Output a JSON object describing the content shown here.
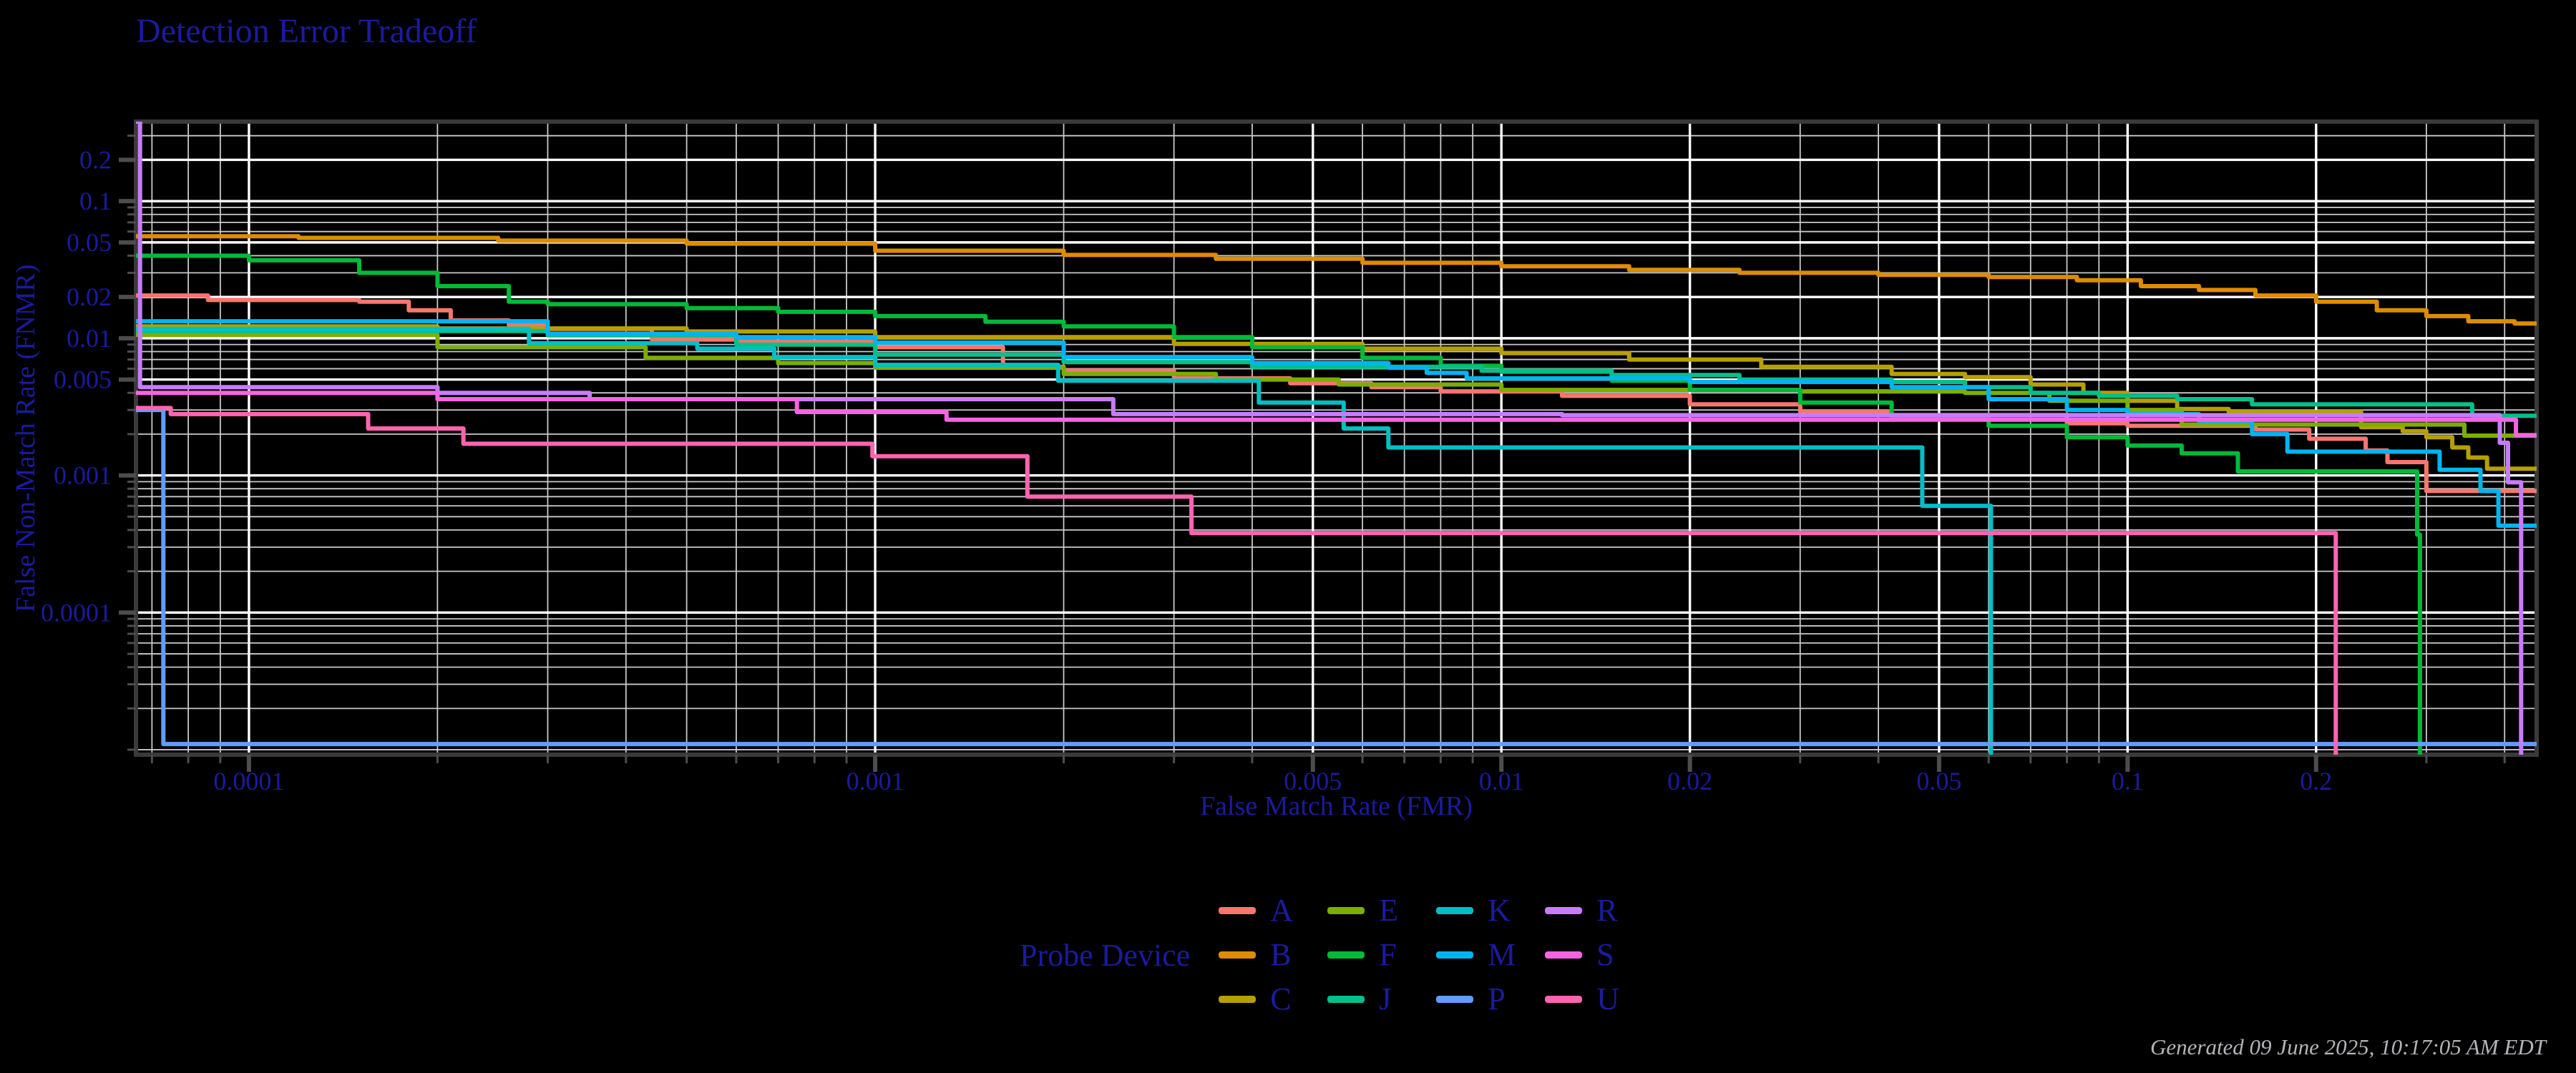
{
  "title": "Detection Error Tradeoff",
  "footer": "Generated 09 June 2025, 10:17:05 AM EDT",
  "axes": {
    "x_label": "False Match Rate (FMR)",
    "y_label": "False Non-Match Rate (FNMR)"
  },
  "legend": {
    "title": "Probe Device",
    "entries": [
      {
        "label": "A",
        "color": "#F8766D"
      },
      {
        "label": "B",
        "color": "#DE8C00"
      },
      {
        "label": "C",
        "color": "#B79F00"
      },
      {
        "label": "E",
        "color": "#7CAE00"
      },
      {
        "label": "F",
        "color": "#00BA38"
      },
      {
        "label": "J",
        "color": "#00C08B"
      },
      {
        "label": "K",
        "color": "#00BFC4"
      },
      {
        "label": "M",
        "color": "#00B4F0"
      },
      {
        "label": "P",
        "color": "#619CFF"
      },
      {
        "label": "R",
        "color": "#C77CFF"
      },
      {
        "label": "S",
        "color": "#F564E3"
      },
      {
        "label": "U",
        "color": "#FF64B0"
      }
    ]
  },
  "chart_data": {
    "type": "line",
    "subtype": "DET step curves, log-log axes",
    "title": "Detection Error Tradeoff",
    "xlabel": "False Match Rate (FMR)",
    "ylabel": "False Non-Match Rate (FNMR)",
    "grid": true,
    "legend_position": "bottom",
    "xlim": [
      6.6e-05,
      0.45
    ],
    "ylim": [
      9.2e-06,
      0.38
    ],
    "x_ticks": [
      {
        "label": "0.0001",
        "value": 0.0001
      },
      {
        "label": "0.001",
        "value": 0.001
      },
      {
        "label": "0.005",
        "value": 0.005
      },
      {
        "label": "0.01",
        "value": 0.01
      },
      {
        "label": "0.02",
        "value": 0.02
      },
      {
        "label": "0.05",
        "value": 0.05
      },
      {
        "label": "0.1",
        "value": 0.1
      },
      {
        "label": "0.2",
        "value": 0.2
      }
    ],
    "y_ticks": [
      {
        "label": "0.2",
        "value": 0.2
      },
      {
        "label": "0.1",
        "value": 0.1
      },
      {
        "label": "0.05",
        "value": 0.05
      },
      {
        "label": "0.02",
        "value": 0.02
      },
      {
        "label": "0.01",
        "value": 0.01
      },
      {
        "label": "0.005",
        "value": 0.005
      },
      {
        "label": "0.001",
        "value": 0.001
      },
      {
        "label": "0.0001",
        "value": 0.0001
      }
    ],
    "series": [
      {
        "name": "A",
        "color": "#F8766D",
        "points": [
          [
            6.6e-05,
            0.0205
          ],
          [
            8.6e-05,
            0.019
          ],
          [
            0.00015,
            0.0185
          ],
          [
            0.00018,
            0.016
          ],
          [
            0.00021,
            0.0135
          ],
          [
            0.00026,
            0.0125
          ],
          [
            0.0003,
            0.0117
          ],
          [
            0.00044,
            0.0098
          ],
          [
            0.0006,
            0.0094
          ],
          [
            0.001,
            0.0086
          ],
          [
            0.0016,
            0.0062
          ],
          [
            0.002,
            0.0058
          ],
          [
            0.003,
            0.0051
          ],
          [
            0.0046,
            0.0047
          ],
          [
            0.0062,
            0.0044
          ],
          [
            0.008,
            0.0041
          ],
          [
            0.0125,
            0.0038
          ],
          [
            0.02,
            0.0033
          ],
          [
            0.03,
            0.0029
          ],
          [
            0.042,
            0.00275
          ],
          [
            0.08,
            0.0024
          ],
          [
            0.1,
            0.0023
          ],
          [
            0.16,
            0.00216
          ],
          [
            0.195,
            0.00185
          ],
          [
            0.24,
            0.00152
          ],
          [
            0.26,
            0.00125
          ],
          [
            0.3,
            0.00077
          ],
          [
            0.45,
            0.00077
          ]
        ]
      },
      {
        "name": "B",
        "color": "#DE8C00",
        "points": [
          [
            6.6e-05,
            0.0555
          ],
          [
            0.00012,
            0.054
          ],
          [
            0.00025,
            0.0515
          ],
          [
            0.0005,
            0.049
          ],
          [
            0.001,
            0.0435
          ],
          [
            0.002,
            0.0405
          ],
          [
            0.0035,
            0.038
          ],
          [
            0.006,
            0.0355
          ],
          [
            0.01,
            0.0335
          ],
          [
            0.016,
            0.0315
          ],
          [
            0.024,
            0.03
          ],
          [
            0.04,
            0.029
          ],
          [
            0.06,
            0.028
          ],
          [
            0.083,
            0.0265
          ],
          [
            0.105,
            0.024
          ],
          [
            0.13,
            0.0225
          ],
          [
            0.16,
            0.0205
          ],
          [
            0.2,
            0.0185
          ],
          [
            0.25,
            0.016
          ],
          [
            0.3,
            0.0145
          ],
          [
            0.35,
            0.0133
          ],
          [
            0.415,
            0.0128
          ],
          [
            0.45,
            0.0128
          ]
        ]
      },
      {
        "name": "C",
        "color": "#B79F00",
        "points": [
          [
            6.6e-05,
            0.0122
          ],
          [
            0.0002,
            0.0118
          ],
          [
            0.0005,
            0.0112
          ],
          [
            0.001,
            0.0102
          ],
          [
            0.003,
            0.0091
          ],
          [
            0.006,
            0.0084
          ],
          [
            0.01,
            0.0078
          ],
          [
            0.016,
            0.007
          ],
          [
            0.026,
            0.0062
          ],
          [
            0.042,
            0.0055
          ],
          [
            0.055,
            0.0052
          ],
          [
            0.07,
            0.0046
          ],
          [
            0.085,
            0.004
          ],
          [
            0.1,
            0.0035
          ],
          [
            0.12,
            0.00305
          ],
          [
            0.145,
            0.0029
          ],
          [
            0.236,
            0.00225
          ],
          [
            0.275,
            0.0021
          ],
          [
            0.3,
            0.0019
          ],
          [
            0.33,
            0.0016
          ],
          [
            0.35,
            0.00135
          ],
          [
            0.375,
            0.00112
          ],
          [
            0.45,
            0.0011
          ]
        ]
      },
      {
        "name": "E",
        "color": "#7CAE00",
        "points": [
          [
            6.6e-05,
            0.0106
          ],
          [
            0.0002,
            0.0086
          ],
          [
            0.00043,
            0.0072
          ],
          [
            0.0007,
            0.0066
          ],
          [
            0.001,
            0.0061
          ],
          [
            0.002,
            0.0055
          ],
          [
            0.0035,
            0.005
          ],
          [
            0.0055,
            0.0046
          ],
          [
            0.01,
            0.0042
          ],
          [
            0.03,
            0.0041
          ],
          [
            0.055,
            0.004
          ],
          [
            0.075,
            0.0035
          ],
          [
            0.1,
            0.003
          ],
          [
            0.122,
            0.00235
          ],
          [
            0.345,
            0.00195
          ],
          [
            0.45,
            0.0019
          ]
        ]
      },
      {
        "name": "F",
        "color": "#00BA38",
        "points": [
          [
            6.6e-05,
            0.04
          ],
          [
            0.0001,
            0.037
          ],
          [
            0.00015,
            0.03
          ],
          [
            0.0002,
            0.024
          ],
          [
            0.00026,
            0.0185
          ],
          [
            0.0003,
            0.0177
          ],
          [
            0.0005,
            0.0166
          ],
          [
            0.0007,
            0.0156
          ],
          [
            0.001,
            0.0145
          ],
          [
            0.0015,
            0.0132
          ],
          [
            0.002,
            0.0122
          ],
          [
            0.003,
            0.0102
          ],
          [
            0.004,
            0.0086
          ],
          [
            0.006,
            0.0072
          ],
          [
            0.008,
            0.0063
          ],
          [
            0.01,
            0.0057
          ],
          [
            0.015,
            0.0049
          ],
          [
            0.02,
            0.0042
          ],
          [
            0.03,
            0.0034
          ],
          [
            0.042,
            0.0027
          ],
          [
            0.06,
            0.0023
          ],
          [
            0.08,
            0.0019
          ],
          [
            0.1,
            0.00165
          ],
          [
            0.122,
            0.00145
          ],
          [
            0.15,
            0.00107
          ],
          [
            0.29,
            0.00037
          ],
          [
            0.293,
            9.2e-06
          ]
        ]
      },
      {
        "name": "J",
        "color": "#00C08B",
        "points": [
          [
            6.6e-05,
            0.0113
          ],
          [
            0.0003,
            0.0105
          ],
          [
            0.0006,
            0.009
          ],
          [
            0.001,
            0.0076
          ],
          [
            0.002,
            0.0067
          ],
          [
            0.004,
            0.0062
          ],
          [
            0.0093,
            0.0058
          ],
          [
            0.015,
            0.0054
          ],
          [
            0.024,
            0.005
          ],
          [
            0.042,
            0.0048
          ],
          [
            0.055,
            0.0044
          ],
          [
            0.07,
            0.004
          ],
          [
            0.09,
            0.0038
          ],
          [
            0.12,
            0.0036
          ],
          [
            0.158,
            0.0033
          ],
          [
            0.355,
            0.00272
          ],
          [
            0.45,
            0.0027
          ]
        ]
      },
      {
        "name": "K",
        "color": "#00BFC4",
        "points": [
          [
            6.6e-05,
            0.0117
          ],
          [
            0.00028,
            0.0092
          ],
          [
            0.00052,
            0.0084
          ],
          [
            0.00069,
            0.0073
          ],
          [
            0.001,
            0.0064
          ],
          [
            0.00196,
            0.0049
          ],
          [
            0.0041,
            0.0034
          ],
          [
            0.0056,
            0.0022
          ],
          [
            0.0066,
            0.0016
          ],
          [
            0.047,
            0.0006
          ],
          [
            0.0605,
            9.2e-06
          ]
        ]
      },
      {
        "name": "M",
        "color": "#00B4F0",
        "points": [
          [
            6.6e-05,
            0.0133
          ],
          [
            0.0003,
            0.0108
          ],
          [
            0.0006,
            0.0102
          ],
          [
            0.001,
            0.0093
          ],
          [
            0.002,
            0.0073
          ],
          [
            0.004,
            0.0066
          ],
          [
            0.0066,
            0.0061
          ],
          [
            0.0076,
            0.0056
          ],
          [
            0.0088,
            0.0051
          ],
          [
            0.02,
            0.0048
          ],
          [
            0.042,
            0.0044
          ],
          [
            0.06,
            0.0036
          ],
          [
            0.08,
            0.003
          ],
          [
            0.1,
            0.0028
          ],
          [
            0.13,
            0.0025
          ],
          [
            0.158,
            0.002
          ],
          [
            0.18,
            0.00149
          ],
          [
            0.315,
            0.0011
          ],
          [
            0.366,
            0.00077
          ],
          [
            0.391,
            0.00043
          ],
          [
            0.45,
            0.00043
          ]
        ]
      },
      {
        "name": "P",
        "color": "#619CFF",
        "points": [
          [
            6.6e-05,
            0.003
          ],
          [
            7.3e-05,
            1.1e-05
          ],
          [
            0.45,
            1.1e-05
          ]
        ]
      },
      {
        "name": "R",
        "color": "#C77CFF",
        "points": [
          [
            6.6e-05,
            0.38
          ],
          [
            6.7e-05,
            0.0044
          ],
          [
            0.0002,
            0.004
          ],
          [
            0.00035,
            0.0036
          ],
          [
            0.0024,
            0.0028
          ],
          [
            0.0125,
            0.00275
          ],
          [
            0.393,
            0.00173
          ],
          [
            0.405,
            0.00089
          ],
          [
            0.425,
            9.2e-06
          ]
        ]
      },
      {
        "name": "S",
        "color": "#F564E3",
        "points": [
          [
            6.6e-05,
            0.004
          ],
          [
            0.0002,
            0.0036
          ],
          [
            0.00075,
            0.0029
          ],
          [
            0.0013,
            0.00255
          ],
          [
            0.417,
            0.00197
          ],
          [
            0.45,
            0.00197
          ]
        ]
      },
      {
        "name": "U",
        "color": "#FF64B0",
        "points": [
          [
            6.6e-05,
            0.0031
          ],
          [
            7.5e-05,
            0.0028
          ],
          [
            0.000155,
            0.0022
          ],
          [
            0.00022,
            0.0017
          ],
          [
            0.00099,
            0.00138
          ],
          [
            0.00175,
            0.0007
          ],
          [
            0.0032,
            0.00038
          ],
          [
            0.215,
            9.2e-06
          ]
        ]
      }
    ]
  }
}
